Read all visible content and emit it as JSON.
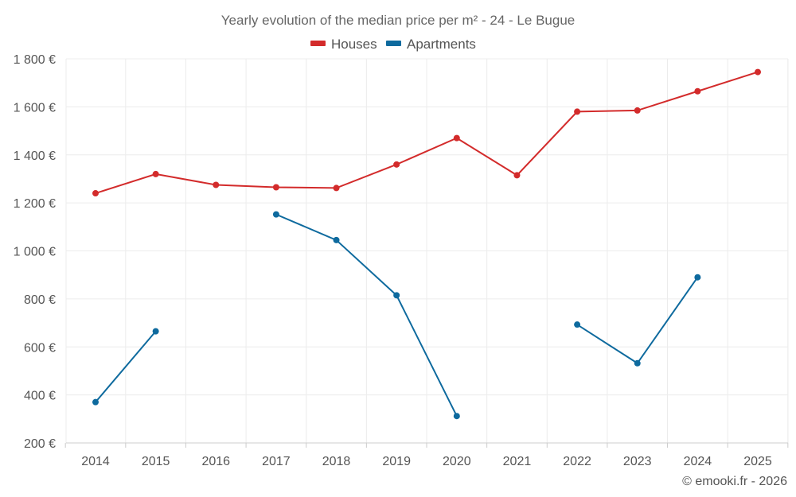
{
  "chart_data": {
    "type": "line",
    "title": "Yearly evolution of the median price per m² - 24 - Le Bugue",
    "xlabel": "",
    "ylabel": "",
    "categories": [
      "2014",
      "2015",
      "2016",
      "2017",
      "2018",
      "2019",
      "2020",
      "2021",
      "2022",
      "2023",
      "2024",
      "2025"
    ],
    "ylim": [
      200,
      1800
    ],
    "yticks": [
      200,
      400,
      600,
      800,
      1000,
      1200,
      1400,
      1600,
      1800
    ],
    "ytick_labels": [
      "200 €",
      "400 €",
      "600 €",
      "800 €",
      "1 000 €",
      "1 200 €",
      "1 400 €",
      "1 600 €",
      "1 800 €"
    ],
    "legend_position": "top-center",
    "grid": true,
    "series": [
      {
        "name": "Houses",
        "color": "#d32b2b",
        "values": [
          1240,
          1320,
          1275,
          1265,
          1262,
          1360,
          1470,
          1315,
          1580,
          1585,
          1665,
          1745
        ]
      },
      {
        "name": "Apartments",
        "color": "#0e6a9e",
        "values": [
          370,
          665,
          null,
          1152,
          1045,
          815,
          312,
          null,
          693,
          532,
          890,
          null
        ]
      }
    ]
  },
  "credit": "© emooki.fr - 2026"
}
